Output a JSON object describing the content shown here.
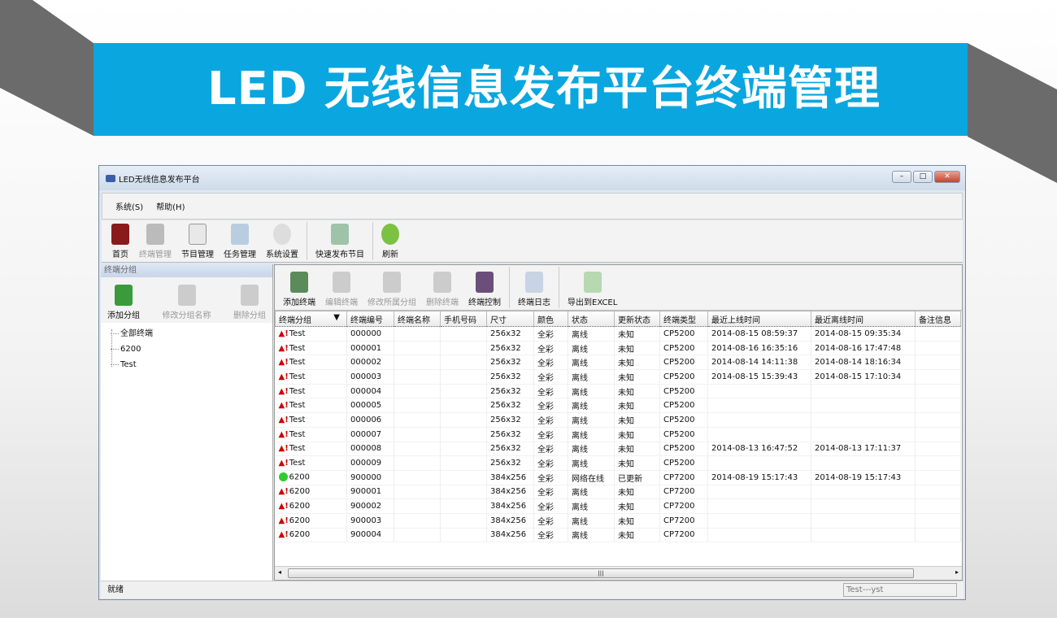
{
  "banner": {
    "title": "LED 无线信息发布平台终端管理"
  },
  "window": {
    "title": "LED无线信息发布平台",
    "controls": [
      "minimize",
      "maximize",
      "close"
    ]
  },
  "menu": [
    "系统(S)",
    "帮助(H)"
  ],
  "toolbar": [
    {
      "label": "首页",
      "icon": "home-icon",
      "enabled": true
    },
    {
      "label": "终端管理",
      "icon": "terminal-icon",
      "enabled": false
    },
    {
      "label": "节目管理",
      "icon": "program-icon",
      "enabled": true
    },
    {
      "label": "任务管理",
      "icon": "task-icon",
      "enabled": true
    },
    {
      "label": "系统设置",
      "icon": "gear-icon",
      "enabled": true
    },
    {
      "label": "快速发布节目",
      "icon": "quick-publish-icon",
      "enabled": true
    },
    {
      "label": "刷新",
      "icon": "refresh-icon",
      "enabled": true
    }
  ],
  "left": {
    "header": "终端分组",
    "tools": [
      {
        "label": "添加分组",
        "enabled": true
      },
      {
        "label": "修改分组名称",
        "enabled": false
      },
      {
        "label": "删除分组",
        "enabled": false
      }
    ],
    "tree": [
      "全部终端",
      "6200",
      "Test"
    ]
  },
  "right_tools": [
    {
      "label": "添加终端",
      "enabled": true
    },
    {
      "label": "编辑终端",
      "enabled": false
    },
    {
      "label": "修改所属分组",
      "enabled": false
    },
    {
      "label": "删除终端",
      "enabled": false
    },
    {
      "label": "终端控制",
      "enabled": true
    },
    {
      "label": "终端日志",
      "enabled": true
    },
    {
      "label": "导出到EXCEL",
      "enabled": true
    }
  ],
  "columns": [
    "终端分组",
    "终端编号",
    "终端名称",
    "手机号码",
    "尺寸",
    "颜色",
    "状态",
    "更新状态",
    "终端类型",
    "最近上线时间",
    "最近离线时间",
    "备注信息"
  ],
  "rows": [
    [
      "Test",
      "000000",
      "",
      "",
      "256x32",
      "全彩",
      "离线",
      "未知",
      "CP5200",
      "2014-08-15 08:59:37",
      "2014-08-15 09:35:34",
      ""
    ],
    [
      "Test",
      "000001",
      "",
      "",
      "256x32",
      "全彩",
      "离线",
      "未知",
      "CP5200",
      "2014-08-16 16:35:16",
      "2014-08-16 17:47:48",
      ""
    ],
    [
      "Test",
      "000002",
      "",
      "",
      "256x32",
      "全彩",
      "离线",
      "未知",
      "CP5200",
      "2014-08-14 14:11:38",
      "2014-08-14 18:16:34",
      ""
    ],
    [
      "Test",
      "000003",
      "",
      "",
      "256x32",
      "全彩",
      "离线",
      "未知",
      "CP5200",
      "2014-08-15 15:39:43",
      "2014-08-15 17:10:34",
      ""
    ],
    [
      "Test",
      "000004",
      "",
      "",
      "256x32",
      "全彩",
      "离线",
      "未知",
      "CP5200",
      "",
      "",
      ""
    ],
    [
      "Test",
      "000005",
      "",
      "",
      "256x32",
      "全彩",
      "离线",
      "未知",
      "CP5200",
      "",
      "",
      ""
    ],
    [
      "Test",
      "000006",
      "",
      "",
      "256x32",
      "全彩",
      "离线",
      "未知",
      "CP5200",
      "",
      "",
      ""
    ],
    [
      "Test",
      "000007",
      "",
      "",
      "256x32",
      "全彩",
      "离线",
      "未知",
      "CP5200",
      "",
      "",
      ""
    ],
    [
      "Test",
      "000008",
      "",
      "",
      "256x32",
      "全彩",
      "离线",
      "未知",
      "CP5200",
      "2014-08-13 16:47:52",
      "2014-08-13 17:11:37",
      ""
    ],
    [
      "Test",
      "000009",
      "",
      "",
      "256x32",
      "全彩",
      "离线",
      "未知",
      "CP5200",
      "",
      "",
      ""
    ],
    [
      "6200",
      "900000",
      "",
      "",
      "384x256",
      "全彩",
      "网络在线",
      "已更新",
      "CP7200",
      "2014-08-19 15:17:43",
      "2014-08-19 15:17:43",
      ""
    ],
    [
      "6200",
      "900001",
      "",
      "",
      "384x256",
      "全彩",
      "离线",
      "未知",
      "CP7200",
      "",
      "",
      ""
    ],
    [
      "6200",
      "900002",
      "",
      "",
      "384x256",
      "全彩",
      "离线",
      "未知",
      "CP7200",
      "",
      "",
      ""
    ],
    [
      "6200",
      "900003",
      "",
      "",
      "384x256",
      "全彩",
      "离线",
      "未知",
      "CP7200",
      "",
      "",
      ""
    ],
    [
      "6200",
      "900004",
      "",
      "",
      "384x256",
      "全彩",
      "离线",
      "未知",
      "CP7200",
      "",
      "",
      ""
    ]
  ],
  "status": {
    "left": "就绪",
    "right": "Test---yst"
  },
  "colors": {
    "banner": "#0aa6e0",
    "online": "#2ecc2e",
    "offline_warn": "#cc0000"
  }
}
